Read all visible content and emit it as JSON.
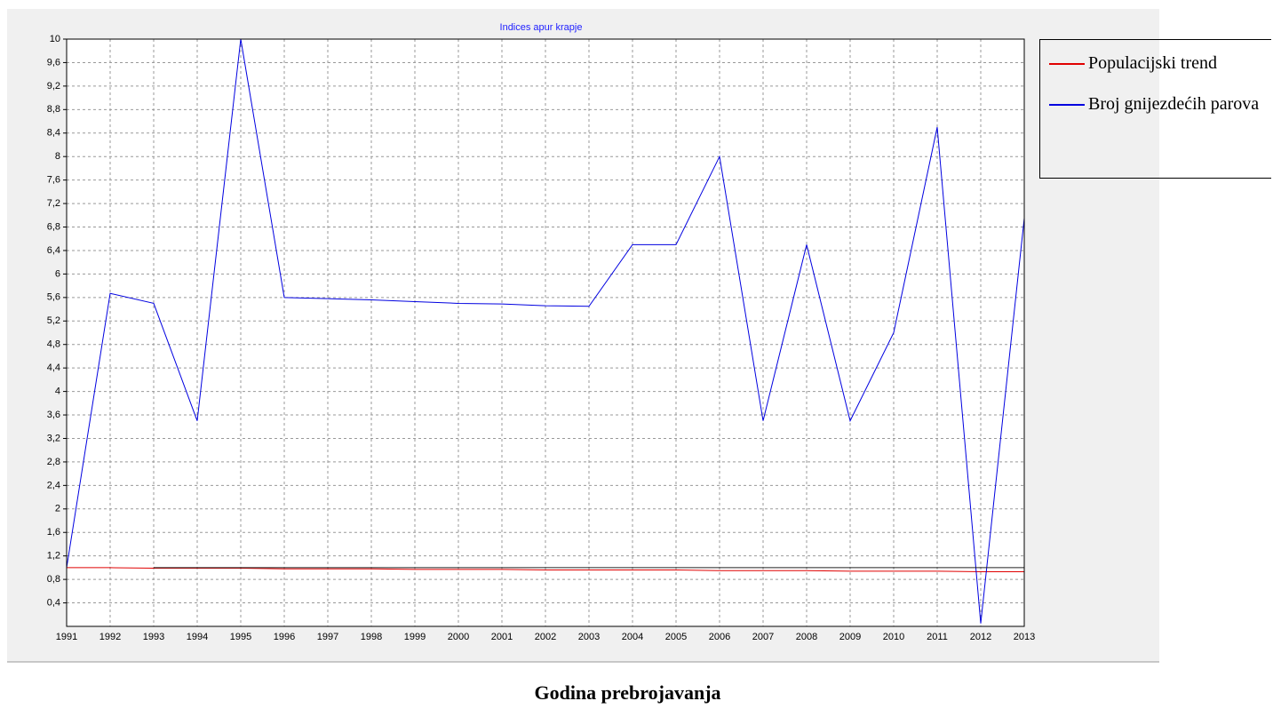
{
  "chart_data": {
    "type": "line",
    "title": "Indices apur krapje",
    "x_label": "Godina prebrojavanja",
    "categories": [
      "1991",
      "1992",
      "1993",
      "1994",
      "1995",
      "1996",
      "1997",
      "1998",
      "1999",
      "2000",
      "2001",
      "2002",
      "2003",
      "2004",
      "2005",
      "2006",
      "2007",
      "2008",
      "2009",
      "2010",
      "2011",
      "2012",
      "2013"
    ],
    "series": [
      {
        "name": "Populacijski trend",
        "color": "#e00000",
        "values": [
          1.0,
          1.0,
          0.99,
          0.99,
          0.99,
          0.98,
          0.98,
          0.98,
          0.97,
          0.97,
          0.97,
          0.96,
          0.96,
          0.96,
          0.96,
          0.95,
          0.95,
          0.95,
          0.94,
          0.94,
          0.94,
          0.93,
          0.93
        ]
      },
      {
        "name": "Broj gnijezdećih parova",
        "color": "#0000e0",
        "values": [
          1.0,
          5.67,
          5.5,
          3.5,
          10,
          5.6,
          5.58,
          5.56,
          5.53,
          5.5,
          5.49,
          5.46,
          5.45,
          6.5,
          6.5,
          8.0,
          3.5,
          6.5,
          3.5,
          5.0,
          8.5,
          0.05,
          6.95
        ]
      },
      {
        "color": "#202020",
        "values": [
          null,
          null,
          1,
          1,
          1,
          1,
          1,
          1,
          1,
          1,
          1,
          1,
          1,
          1,
          1,
          1,
          1,
          1,
          1,
          1,
          1,
          1,
          1
        ]
      }
    ],
    "ylim": [
      0,
      10
    ],
    "yticks": [
      {
        "value": 0.4,
        "label": "0,4"
      },
      {
        "value": 0.8,
        "label": "0,8"
      },
      {
        "value": 1.2,
        "label": "1,2"
      },
      {
        "value": 1.6,
        "label": "1,6"
      },
      2,
      {
        "value": 2.4,
        "label": "2,4"
      },
      {
        "value": 2.8,
        "label": "2,8"
      },
      {
        "value": 3.2,
        "label": "3,2"
      },
      {
        "value": 3.6,
        "label": "3,6"
      },
      4,
      {
        "value": 4.4,
        "label": "4,4"
      },
      {
        "value": 4.8,
        "label": "4,8"
      },
      {
        "value": 5.2,
        "label": "5,2"
      },
      {
        "value": 5.6,
        "label": "5,6"
      },
      6,
      {
        "value": 6.4,
        "label": "6,4"
      },
      {
        "value": 6.8,
        "label": "6,8"
      },
      {
        "value": 7.2,
        "label": "7,2"
      },
      {
        "value": 7.6,
        "label": "7,6"
      },
      8,
      {
        "value": 8.4,
        "label": "8,4"
      },
      {
        "value": 8.8,
        "label": "8,8"
      },
      {
        "value": 9.2,
        "label": "9,2"
      },
      {
        "value": 9.6,
        "label": "9,6"
      },
      10
    ],
    "grid": true
  }
}
